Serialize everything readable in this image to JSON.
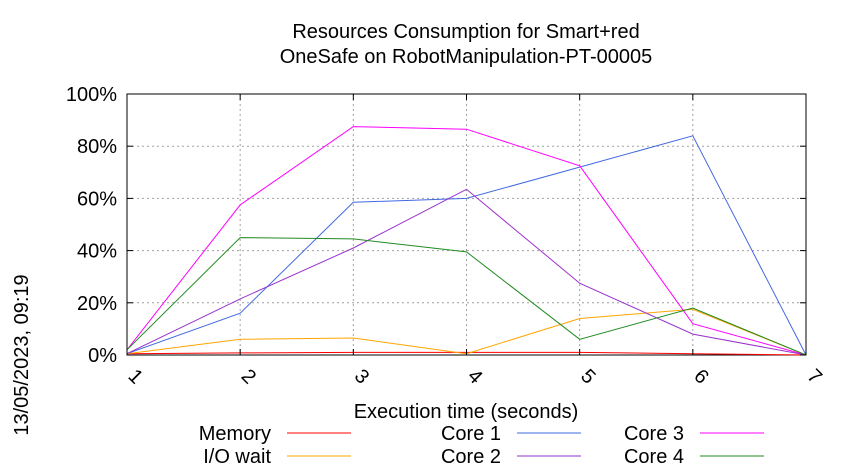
{
  "chart_data": {
    "type": "line",
    "title_lines": [
      "Resources Consumption for Smart+red",
      "OneSafe on RobotManipulation-PT-00005"
    ],
    "xlabel": "Execution time (seconds)",
    "ylabel": "",
    "side_label": "13/05/2023, 09:19",
    "x": [
      1,
      2,
      3,
      4,
      5,
      6,
      7
    ],
    "xlim": [
      1,
      7
    ],
    "ylim": [
      0,
      100
    ],
    "y_ticks": [
      0,
      20,
      40,
      60,
      80,
      100
    ],
    "y_tick_labels": [
      "0%",
      "20%",
      "40%",
      "60%",
      "80%",
      "100%"
    ],
    "x_tick_labels": [
      "1",
      "2",
      "3",
      "4",
      "5",
      "6",
      "7"
    ],
    "grid": true,
    "legend_position": "bottom",
    "series": [
      {
        "name": "Memory",
        "color": "#ff0000",
        "values": [
          0.5,
          0.8,
          1.0,
          1.0,
          1.0,
          0.5,
          0
        ]
      },
      {
        "name": "I/O wait",
        "color": "#ffa500",
        "values": [
          0.5,
          6,
          6.5,
          0.5,
          14,
          17.5,
          0
        ]
      },
      {
        "name": "Core 1",
        "color": "#4169e1",
        "values": [
          0.5,
          16,
          58.5,
          60,
          72,
          84,
          0
        ]
      },
      {
        "name": "Core 2",
        "color": "#9932cc",
        "values": [
          0.5,
          21.5,
          41,
          63.5,
          27.5,
          8,
          0
        ]
      },
      {
        "name": "Core 3",
        "color": "#ff00ff",
        "values": [
          2,
          57.5,
          87.5,
          86.5,
          72.5,
          12,
          0
        ]
      },
      {
        "name": "Core 4",
        "color": "#228b22",
        "values": [
          2,
          45,
          44.5,
          39.5,
          6,
          18,
          0
        ]
      }
    ]
  }
}
